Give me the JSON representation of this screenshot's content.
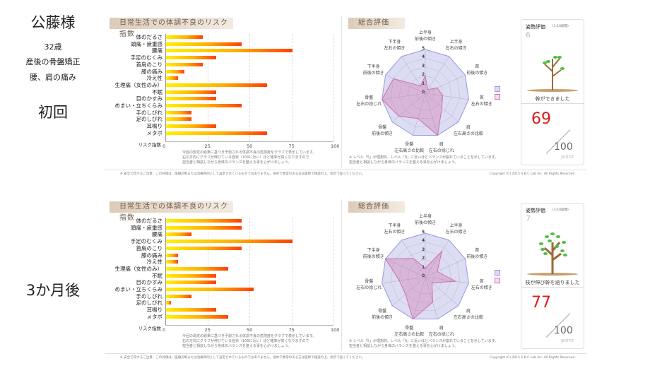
{
  "client": {
    "name": "公藤様",
    "age": "32歳",
    "concern1": "産後の骨盤矯正",
    "concern2": "腰、肩の痛み"
  },
  "sessions": [
    {
      "label": "初回",
      "risk_title": "日常生活での体調不良のリスク指数",
      "axis_label": "リスク指数",
      "desc": [
        "今回の測定の結果に基づき予測される体調不良の危険度をグラフで表示しています。",
        "右の方向にグラフが伸びている症状（100に近い）ほど確率が高くなりますので",
        "担当者と相談しながら身体のバランスを整える事を心がけましょう。"
      ],
      "footer_note": "※ 安全で得するご注意：この評価は、医療診断または治療目的として設定されているものではありません。身体で異常のある方は医師で相談の上、指示で従ってください。",
      "copyright": "Copyright (C) 2015 S.B.C Lab Inc. All Rights Reserved.",
      "radar_title": "総合評価",
      "radar_note": [
        "※ レベル「5」が理想的、レベル「0」に近いほどバランスが崩れていることを示しています。",
        "担当者と相談しながら身体のバランスを整える事を心がけましょう。"
      ],
      "posture_title": "姿勢評価",
      "posture_scale": "(1-10段階)",
      "posture_value": "6",
      "tree_caption": "幹ができました",
      "score": "69",
      "score_max": "100",
      "score_unit": "point",
      "tree_level": 6,
      "chart_data": {
        "type": "bar",
        "orientation": "horizontal",
        "xlim": [
          0,
          100
        ],
        "xticks": [
          "0",
          "25",
          "50",
          "75",
          "100"
        ],
        "categories": [
          "体のだるさ",
          "頭痛・疲重感",
          "腰痛",
          "手足のむくみ",
          "首肩のこり",
          "膝の痛み",
          "冷え性",
          "生理痛（女性のみ）",
          "不眠",
          "目のかすみ",
          "めまい・立ちくらみ",
          "手のしびれ",
          "足のしびれ",
          "耳鳴り",
          "メタボ"
        ],
        "values": [
          22,
          45,
          75,
          30,
          22,
          11,
          7,
          60,
          30,
          30,
          45,
          15,
          15,
          30,
          60
        ]
      },
      "radar_data": {
        "type": "radar",
        "range": [
          0,
          5
        ],
        "ticks": [
          "0",
          "1",
          "2",
          "3",
          "4",
          "5"
        ],
        "axes": [
          [
            "上半身",
            "前後の傾き"
          ],
          [
            "上半身",
            "左右の傾き"
          ],
          [
            "首",
            "前後の傾き"
          ],
          [
            "首",
            "左右の傾き"
          ],
          [
            "肩",
            "左右高さの比較"
          ],
          [
            "肩",
            "左右の捻じれ"
          ],
          [
            "骨盤",
            "左右高さの比較"
          ],
          [
            "骨盤",
            "前後の傾き"
          ],
          [
            "骨盤",
            "左右の捻じれ"
          ],
          [
            "下半身",
            "前後の傾き"
          ],
          [
            "下半身",
            "左右の傾き"
          ]
        ],
        "ideal": [
          5,
          5,
          5,
          5,
          5,
          5,
          5,
          5,
          5,
          5,
          5
        ],
        "values": [
          2,
          0.5,
          1.5,
          2,
          2.5,
          5,
          3,
          4,
          5,
          4,
          1
        ],
        "colors": {
          "ideal": "#9999dd",
          "actual": "#d070b0"
        }
      }
    },
    {
      "label": "3か月後",
      "risk_title": "日常生活での体調不良のリスク指数",
      "axis_label": "リスク指数",
      "desc": [
        "今回の測定の結果に基づき予測される体調不良の危険度をグラフで表示しています。",
        "右の方向にグラフが伸びている症状（100に近い）ほど確率が高くなりますので",
        "担当者と相談しながら身体のバランスを整える事を心がけましょう。"
      ],
      "footer_note": "※ 安全で得するご注意：この評価は、医療診断または治療目的として設定されているものではありません。身体で異常のある方は医師で相談の上、指示で従ってください。",
      "copyright": "Copyright (C) 2015 S.B.C Lab Inc. All Rights Reserved.",
      "radar_title": "総合評価",
      "radar_note": [
        "※ レベル「5」が理想的、レベル「0」に近いほどバランスが崩れていることを示しています。",
        "担当者と相談しながら身体のバランスを整える事を心がけましょう。"
      ],
      "posture_title": "姿勢評価",
      "posture_scale": "(1-10段階)",
      "posture_value": "7",
      "tree_caption": "枝が伸び幹を涵りました",
      "score": "77",
      "score_max": "100",
      "score_unit": "point",
      "tree_level": 7,
      "chart_data": {
        "type": "bar",
        "orientation": "horizontal",
        "xlim": [
          0,
          100
        ],
        "xticks": [
          "0",
          "25",
          "50",
          "75",
          "100"
        ],
        "categories": [
          "体のだるさ",
          "頭痛・疲重感",
          "腰痛",
          "手足のむくみ",
          "首肩のこり",
          "膝の痛み",
          "冷え性",
          "生理痛（女性のみ）",
          "不眠",
          "目のかすみ",
          "めまい・立ちくらみ",
          "手のしびれ",
          "足のしびれ",
          "耳鳴り",
          "メタボ"
        ],
        "values": [
          45,
          45,
          15,
          75,
          45,
          7,
          7,
          37,
          30,
          30,
          52,
          15,
          3,
          30,
          37
        ]
      },
      "radar_data": {
        "type": "radar",
        "range": [
          0,
          5
        ],
        "ticks": [
          "0",
          "1",
          "2",
          "3",
          "4",
          "5"
        ],
        "axes": [
          [
            "上半身",
            "前後の傾き"
          ],
          [
            "上半身",
            "左右の傾き"
          ],
          [
            "首",
            "前後の傾き"
          ],
          [
            "首",
            "左右の傾き"
          ],
          [
            "肩",
            "左右高さの比較"
          ],
          [
            "肩",
            "左右の捻じれ"
          ],
          [
            "骨盤",
            "左右高さの比較"
          ],
          [
            "骨盤",
            "前後の傾き"
          ],
          [
            "骨盤",
            "左右の捻じれ"
          ],
          [
            "下半身",
            "前後の傾き"
          ],
          [
            "下半身",
            "左右の傾き"
          ]
        ],
        "ideal": [
          5,
          5,
          5,
          5,
          5,
          5,
          5,
          5,
          5,
          5,
          5
        ],
        "values": [
          1,
          3.5,
          1.5,
          3.5,
          1,
          3,
          5,
          3,
          3,
          5,
          2.5
        ],
        "colors": {
          "ideal": "#9999dd",
          "actual": "#d070b0"
        }
      }
    }
  ]
}
